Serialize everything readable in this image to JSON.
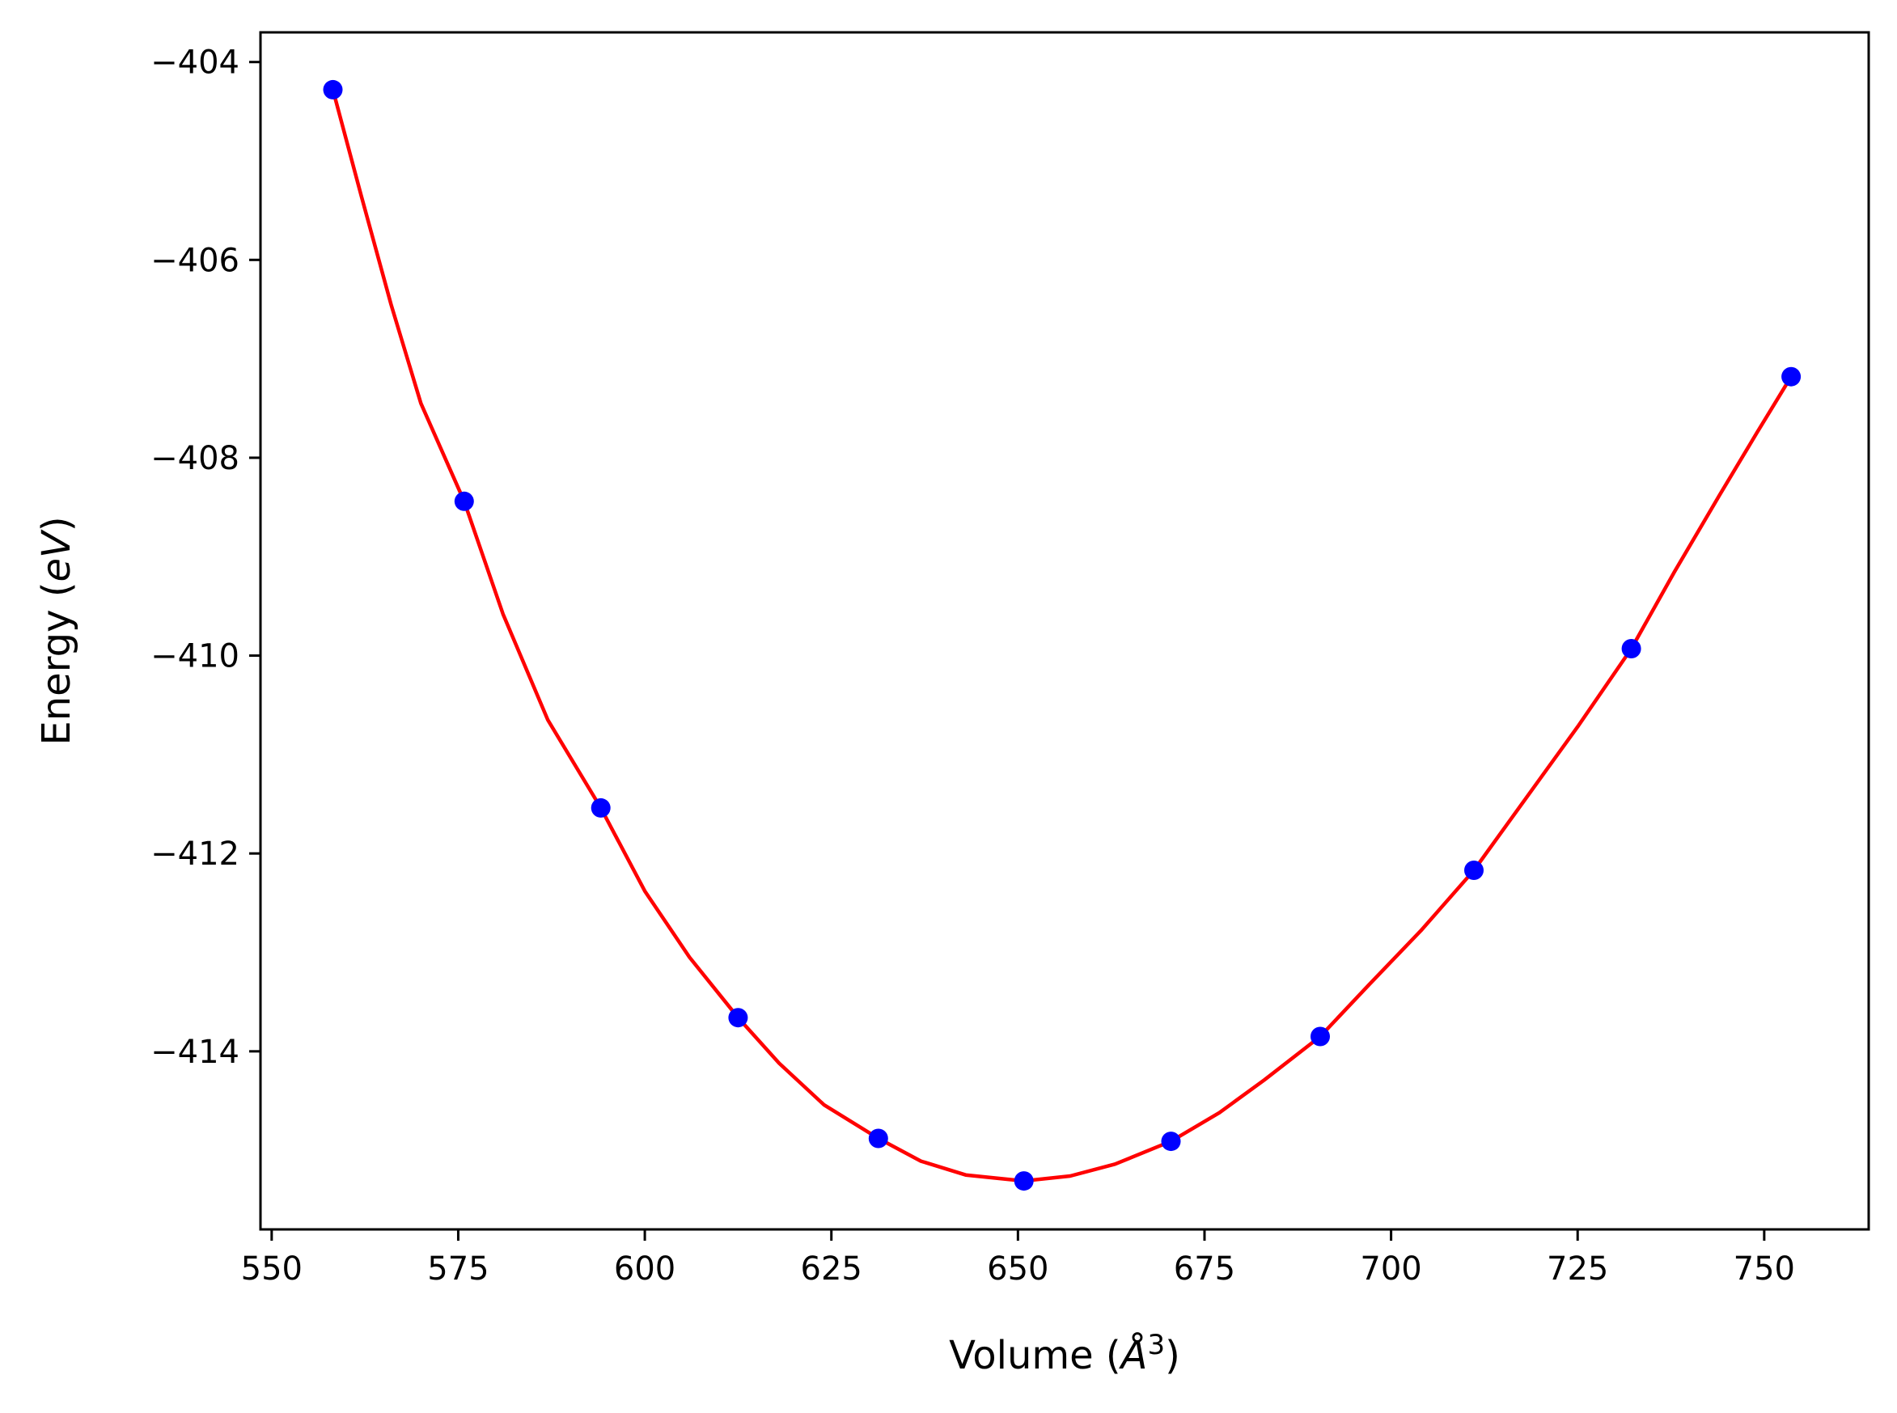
{
  "chart_data": {
    "type": "line",
    "title": "",
    "xlabel_main": "Volume (",
    "xlabel_italic": "Å",
    "xlabel_sup": "3",
    "xlabel_end": ")",
    "ylabel_main": "Energy (",
    "ylabel_italic": "eV",
    "ylabel_end": ")",
    "xlim": [
      548.5,
      764.0
    ],
    "ylim": [
      -415.8,
      -403.7
    ],
    "x_ticks": [
      550,
      575,
      600,
      625,
      650,
      675,
      700,
      725,
      750
    ],
    "x_tick_labels": [
      "550",
      "575",
      "600",
      "625",
      "650",
      "675",
      "700",
      "725",
      "750"
    ],
    "y_ticks": [
      -404,
      -406,
      -408,
      -410,
      -412,
      -414
    ],
    "y_tick_labels": [
      "−404",
      "−406",
      "−408",
      "−410",
      "−412",
      "−414"
    ],
    "grid": false,
    "series": [
      {
        "kind": "fit-curve",
        "color": "#ff0000",
        "x": [
          558.2,
          562.0,
          566.0,
          570.0,
          575.8,
          581.0,
          587.0,
          594.1,
          600.0,
          606.0,
          612.5,
          618.0,
          624.0,
          631.3,
          637.0,
          643.0,
          650.8,
          657.0,
          663.0,
          670.5,
          677.0,
          683.0,
          690.5,
          697.0,
          704.0,
          711.1,
          718.0,
          725.0,
          732.2,
          738.0,
          744.0,
          749.0,
          753.6
        ],
        "y": [
          -404.28,
          -405.35,
          -406.45,
          -407.45,
          -408.44,
          -409.58,
          -410.65,
          -411.54,
          -412.38,
          -413.05,
          -413.66,
          -414.12,
          -414.54,
          -414.88,
          -415.11,
          -415.25,
          -415.31,
          -415.26,
          -415.14,
          -414.91,
          -414.62,
          -414.29,
          -413.85,
          -413.33,
          -412.78,
          -412.17,
          -411.45,
          -410.72,
          -409.93,
          -409.15,
          -408.38,
          -407.75,
          -407.18
        ]
      },
      {
        "kind": "data-points",
        "color": "#0000ff",
        "x": [
          558.2,
          575.8,
          594.1,
          612.5,
          631.3,
          650.8,
          670.5,
          690.5,
          711.1,
          732.2,
          753.6
        ],
        "y": [
          -404.28,
          -408.44,
          -411.54,
          -413.66,
          -414.88,
          -415.31,
          -414.91,
          -413.85,
          -412.17,
          -409.93,
          -407.18
        ]
      }
    ]
  }
}
